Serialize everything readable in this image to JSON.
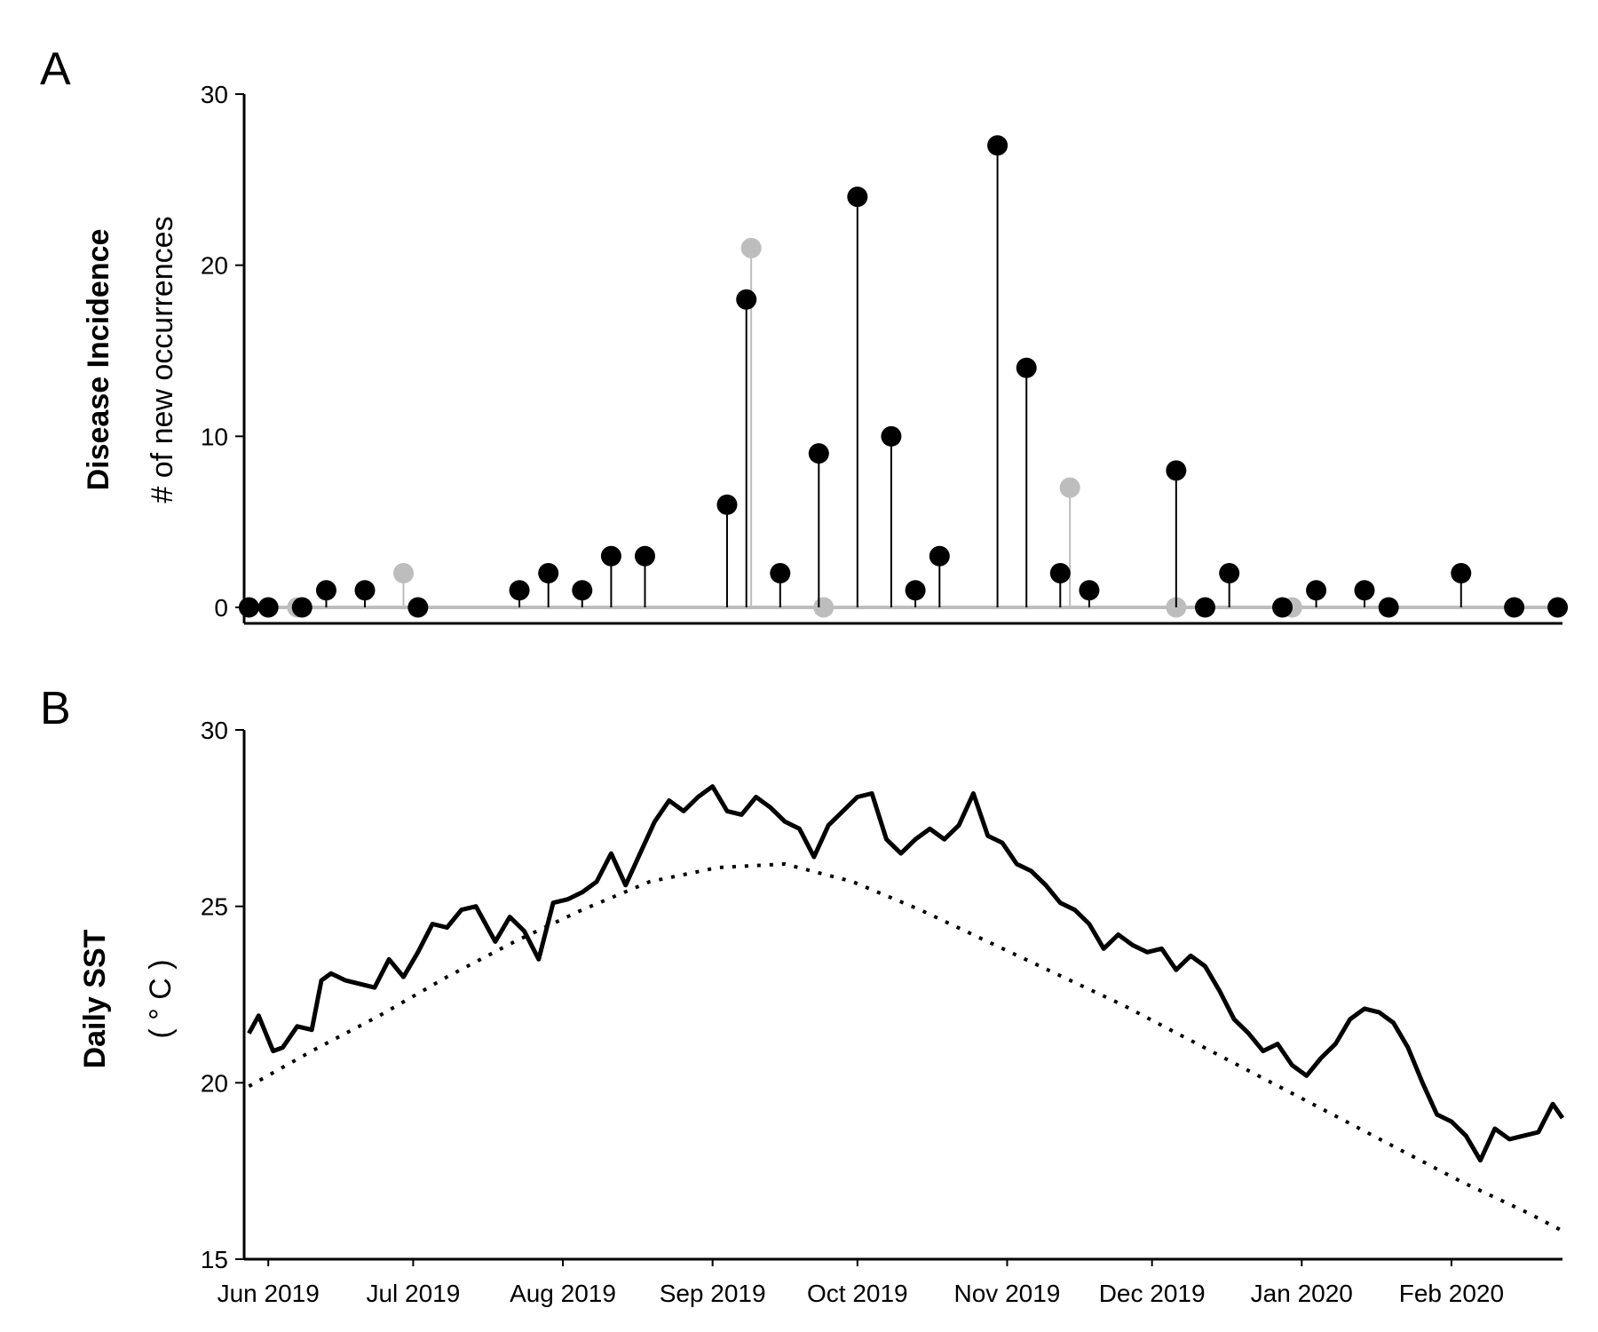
{
  "colors": {
    "primary": "#000000",
    "secondary": "#bdbdbd",
    "background": "#ffffff"
  },
  "chart_data": [
    {
      "panel": "A",
      "type": "lollipop",
      "ylabel": "Disease Incidence",
      "ylabel_sub": "# of new occurrences",
      "ylim": [
        0,
        30
      ],
      "yticks": [
        0,
        10,
        20,
        30
      ],
      "xlim": [
        "2019-05-27",
        "2020-02-24"
      ],
      "xtick_labels": [
        "Jun 2019",
        "Jul 2019",
        "Aug 2019",
        "Sep 2019",
        "Oct 2019",
        "Nov 2019",
        "Dec 2019",
        "Jan 2020",
        "Feb 2020"
      ],
      "xtick_dates": [
        "2019-06-01",
        "2019-07-01",
        "2019-08-01",
        "2019-09-01",
        "2019-10-01",
        "2019-11-01",
        "2019-12-01",
        "2020-01-01",
        "2020-02-01"
      ],
      "grid": false,
      "series": [
        {
          "color": "#000000",
          "dates": [
            "2019-05-28",
            "2019-06-01",
            "2019-06-08",
            "2019-06-13",
            "2019-06-21",
            "2019-07-02",
            "2019-07-23",
            "2019-07-29",
            "2019-08-05",
            "2019-08-11",
            "2019-08-18",
            "2019-09-04",
            "2019-09-08",
            "2019-09-15",
            "2019-09-23",
            "2019-10-01",
            "2019-10-08",
            "2019-10-13",
            "2019-10-18",
            "2019-10-30",
            "2019-11-05",
            "2019-11-12",
            "2019-11-18",
            "2019-12-06",
            "2019-12-12",
            "2019-12-17",
            "2019-12-28",
            "2020-01-04",
            "2020-01-14",
            "2020-01-19",
            "2020-02-03",
            "2020-02-14",
            "2020-02-23"
          ],
          "values": [
            0,
            0,
            0,
            1,
            1,
            0,
            1,
            2,
            1,
            3,
            3,
            6,
            18,
            2,
            9,
            24,
            10,
            1,
            3,
            27,
            14,
            2,
            1,
            8,
            0,
            2,
            0,
            1,
            1,
            0,
            2,
            0,
            0
          ]
        },
        {
          "color": "#bdbdbd",
          "dates": [
            "2019-06-07",
            "2019-06-29",
            "2019-09-09",
            "2019-09-24",
            "2019-11-14",
            "2019-12-06",
            "2019-12-30"
          ],
          "values": [
            0,
            2,
            21,
            0,
            7,
            0,
            0
          ]
        }
      ]
    },
    {
      "panel": "B",
      "type": "line",
      "ylabel": "Daily SST",
      "ylabel_sub": "( ° C )",
      "ylim": [
        15,
        30
      ],
      "yticks": [
        15,
        20,
        25,
        30
      ],
      "xlim": [
        "2019-05-27",
        "2020-02-24"
      ],
      "xtick_labels": [
        "Jun 2019",
        "Jul 2019",
        "Aug 2019",
        "Sep 2019",
        "Oct 2019",
        "Nov 2019",
        "Dec 2019",
        "Jan 2020",
        "Feb 2020"
      ],
      "xtick_dates": [
        "2019-06-01",
        "2019-07-01",
        "2019-08-01",
        "2019-09-01",
        "2019-10-01",
        "2019-11-01",
        "2019-12-01",
        "2020-01-01",
        "2020-02-01"
      ],
      "grid": false,
      "series": [
        {
          "style": "solid",
          "color": "#000000",
          "dates": [
            "2019-05-28",
            "2019-05-30",
            "2019-06-02",
            "2019-06-04",
            "2019-06-07",
            "2019-06-10",
            "2019-06-12",
            "2019-06-14",
            "2019-06-17",
            "2019-06-20",
            "2019-06-23",
            "2019-06-26",
            "2019-06-29",
            "2019-07-02",
            "2019-07-05",
            "2019-07-08",
            "2019-07-11",
            "2019-07-14",
            "2019-07-18",
            "2019-07-21",
            "2019-07-24",
            "2019-07-27",
            "2019-07-30",
            "2019-08-02",
            "2019-08-05",
            "2019-08-08",
            "2019-08-11",
            "2019-08-14",
            "2019-08-17",
            "2019-08-20",
            "2019-08-23",
            "2019-08-26",
            "2019-08-29",
            "2019-09-01",
            "2019-09-04",
            "2019-09-07",
            "2019-09-10",
            "2019-09-13",
            "2019-09-16",
            "2019-09-19",
            "2019-09-22",
            "2019-09-25",
            "2019-09-28",
            "2019-10-01",
            "2019-10-04",
            "2019-10-07",
            "2019-10-10",
            "2019-10-13",
            "2019-10-16",
            "2019-10-19",
            "2019-10-22",
            "2019-10-25",
            "2019-10-28",
            "2019-10-31",
            "2019-11-03",
            "2019-11-06",
            "2019-11-09",
            "2019-11-12",
            "2019-11-15",
            "2019-11-18",
            "2019-11-21",
            "2019-11-24",
            "2019-11-27",
            "2019-11-30",
            "2019-12-03",
            "2019-12-06",
            "2019-12-09",
            "2019-12-12",
            "2019-12-15",
            "2019-12-18",
            "2019-12-21",
            "2019-12-24",
            "2019-12-27",
            "2019-12-30",
            "2020-01-02",
            "2020-01-05",
            "2020-01-08",
            "2020-01-11",
            "2020-01-14",
            "2020-01-17",
            "2020-01-20",
            "2020-01-23",
            "2020-01-26",
            "2020-01-29",
            "2020-02-01",
            "2020-02-04",
            "2020-02-07",
            "2020-02-10",
            "2020-02-13",
            "2020-02-16",
            "2020-02-19",
            "2020-02-22",
            "2020-02-24"
          ],
          "values": [
            21.4,
            21.9,
            20.9,
            21.0,
            21.6,
            21.5,
            22.9,
            23.1,
            22.9,
            22.8,
            22.7,
            23.5,
            23.0,
            23.7,
            24.5,
            24.4,
            24.9,
            25.0,
            24.0,
            24.7,
            24.3,
            23.5,
            25.1,
            25.2,
            25.4,
            25.7,
            26.5,
            25.6,
            26.5,
            27.4,
            28.0,
            27.7,
            28.1,
            28.4,
            27.7,
            27.6,
            28.1,
            27.8,
            27.4,
            27.2,
            26.4,
            27.3,
            27.7,
            28.1,
            28.2,
            26.9,
            26.5,
            26.9,
            27.2,
            26.9,
            27.3,
            28.2,
            27.0,
            26.8,
            26.2,
            26.0,
            25.6,
            25.1,
            24.9,
            24.5,
            23.8,
            24.2,
            23.9,
            23.7,
            23.8,
            23.2,
            23.6,
            23.3,
            22.6,
            21.8,
            21.4,
            20.9,
            21.1,
            20.5,
            20.2,
            20.7,
            21.1,
            21.8,
            22.1,
            22.0,
            21.7,
            21.0,
            20.0,
            19.1,
            18.9,
            18.5,
            17.8,
            18.7,
            18.4,
            18.5,
            18.6,
            19.4,
            19.0
          ]
        },
        {
          "style": "dotted",
          "color": "#000000",
          "dates": [
            "2019-05-28",
            "2019-06-10",
            "2019-06-24",
            "2019-07-08",
            "2019-07-22",
            "2019-08-05",
            "2019-08-19",
            "2019-09-02",
            "2019-09-16",
            "2019-09-30",
            "2019-10-14",
            "2019-10-28",
            "2019-11-11",
            "2019-11-25",
            "2019-12-09",
            "2019-12-23",
            "2020-01-06",
            "2020-01-20",
            "2020-02-03",
            "2020-02-17",
            "2020-02-24"
          ],
          "values": [
            19.9,
            20.9,
            21.9,
            23.0,
            24.0,
            24.9,
            25.7,
            26.1,
            26.2,
            25.7,
            24.9,
            24.0,
            23.1,
            22.2,
            21.2,
            20.2,
            19.2,
            18.2,
            17.2,
            16.3,
            15.8
          ]
        }
      ]
    }
  ]
}
